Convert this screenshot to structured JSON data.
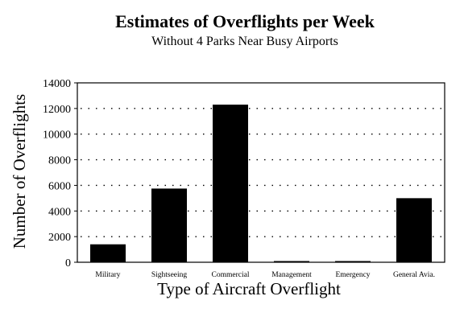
{
  "chart_data": {
    "type": "bar",
    "title": "Estimates of Overflights per Week",
    "subtitle": "Without 4 Parks Near Busy Airports",
    "xlabel": "Type of Aircraft Overflight",
    "ylabel": "Number of Overflights",
    "categories": [
      "Military",
      "Sightseeing",
      "Commercial",
      "Management",
      "Emergency",
      "General Avia."
    ],
    "values": [
      1400,
      5750,
      12300,
      60,
      80,
      5000
    ],
    "ylim": [
      0,
      14000
    ],
    "yticks": [
      "0",
      "2000",
      "4000",
      "6000",
      "8000",
      "10000",
      "12000",
      "14000"
    ],
    "grid": true,
    "legend": "none",
    "colors": {
      "bar": "#000000",
      "background": "#ffffff"
    }
  }
}
